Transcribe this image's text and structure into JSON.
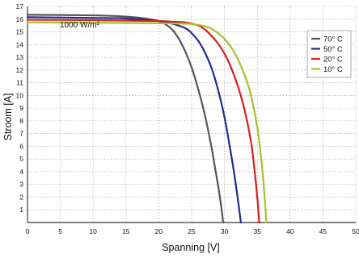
{
  "chart_data": {
    "type": "line",
    "xlabel": "Spanning [V]",
    "ylabel": "Stroom [A]",
    "annotation": "1000 W/m²",
    "xlim": [
      0,
      50
    ],
    "ylim": [
      0,
      17
    ],
    "xticks": [
      0,
      5,
      10,
      15,
      20,
      25,
      30,
      35,
      40,
      45,
      50
    ],
    "yticks": [
      1,
      2,
      3,
      4,
      5,
      6,
      7,
      8,
      9,
      10,
      11,
      12,
      13,
      14,
      15,
      16,
      17
    ],
    "grid": true,
    "legend_position": "top-right",
    "series": [
      {
        "name": "70° C",
        "color": "#555555",
        "x": [
          0,
          10,
          15,
          18,
          20,
          21,
          22,
          23,
          24,
          25,
          26,
          27,
          28,
          28.5,
          29,
          29.5,
          29.8
        ],
        "y": [
          16.35,
          16.3,
          16.2,
          16.05,
          15.85,
          15.6,
          15.2,
          14.5,
          13.5,
          12.2,
          10.5,
          8.5,
          6.0,
          4.5,
          3.0,
          1.3,
          0
        ]
      },
      {
        "name": "50° C",
        "color": "#1f2b8f",
        "x": [
          0,
          10,
          15,
          20,
          22,
          24,
          25,
          26,
          27,
          28,
          29,
          30,
          31,
          31.5,
          32,
          32.5
        ],
        "y": [
          16.15,
          16.1,
          16.05,
          15.85,
          15.65,
          15.3,
          14.9,
          14.3,
          13.4,
          12.2,
          10.5,
          8.3,
          5.4,
          3.8,
          2.0,
          0
        ]
      },
      {
        "name": "20° C",
        "color": "#d62020",
        "x": [
          0,
          10,
          20,
          22,
          24,
          26,
          27,
          28,
          29,
          30,
          31,
          32,
          33,
          34,
          34.5,
          35,
          35.3
        ],
        "y": [
          15.95,
          15.92,
          15.85,
          15.8,
          15.75,
          15.5,
          15.2,
          14.7,
          14.1,
          13.3,
          12.2,
          10.8,
          9.0,
          6.5,
          4.5,
          2.0,
          0
        ]
      },
      {
        "name": "10° C",
        "color": "#9fc52e",
        "x": [
          0,
          10,
          20,
          23,
          25,
          27,
          28,
          29,
          30,
          31,
          32,
          33,
          34,
          35,
          35.5,
          36,
          36.4
        ],
        "y": [
          15.75,
          15.72,
          15.68,
          15.65,
          15.62,
          15.45,
          15.25,
          14.9,
          14.45,
          13.8,
          12.9,
          11.7,
          10.1,
          7.5,
          5.5,
          2.8,
          0
        ]
      }
    ]
  }
}
